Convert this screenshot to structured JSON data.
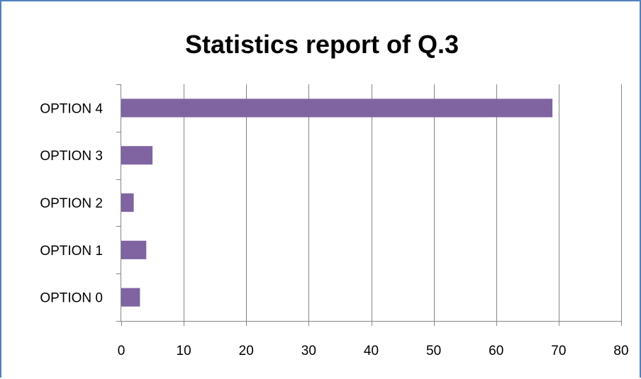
{
  "chart_data": {
    "type": "bar",
    "orientation": "horizontal",
    "title": "Statistics report of Q.3",
    "xlabel": "",
    "ylabel": "",
    "categories": [
      "OPTION 0",
      "OPTION 1",
      "OPTION 2",
      "OPTION 3",
      "OPTION 4"
    ],
    "values": [
      3,
      4,
      2,
      5,
      69
    ],
    "xlim": [
      0,
      80
    ],
    "xticks": [
      0,
      10,
      20,
      30,
      40,
      50,
      60,
      70,
      80
    ],
    "grid": "vertical",
    "legend": "none",
    "colors": {
      "bar": "#8064a2",
      "grid": "#868686",
      "frame": "#4f81bd"
    }
  }
}
